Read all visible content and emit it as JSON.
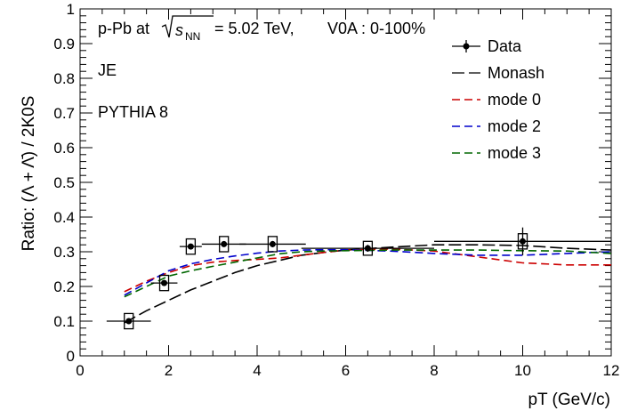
{
  "chart_data": {
    "type": "line",
    "ylabel": "Ratio: (Λ + Λ̄) / 2K0S",
    "xlabel": "pT (GeV/c)",
    "xlim": [
      0,
      12
    ],
    "ylim": [
      0,
      1.0
    ],
    "x_ticks": [
      0,
      2,
      4,
      6,
      8,
      10,
      12
    ],
    "y_ticks": [
      0,
      0.1,
      0.2,
      0.3,
      0.4,
      0.5,
      0.6,
      0.7,
      0.8,
      0.9,
      1.0
    ],
    "annotations": {
      "system_prefix": "p-Pb at",
      "energy_value": "= 5.02 TeV,",
      "centrality": "V0A : 0-100%",
      "label_je": "JE",
      "label_generator": "PYTHIA 8"
    },
    "legend": {
      "placement": "top-right",
      "entries": [
        "Data",
        "Monash",
        "mode 0",
        "mode 2",
        "mode 3"
      ]
    },
    "series": [
      {
        "name": "Data",
        "style": "points",
        "color": "#000000",
        "x": [
          1.1,
          1.9,
          2.5,
          3.25,
          4.35,
          6.5,
          10.0
        ],
        "y": [
          0.1,
          0.21,
          0.315,
          0.322,
          0.322,
          0.31,
          0.33
        ],
        "xerr": [
          0.5,
          0.3,
          0.25,
          0.5,
          0.75,
          1.5,
          2.0
        ],
        "yerr": [
          0.008,
          0.008,
          0.008,
          0.008,
          0.009,
          0.01,
          0.04
        ],
        "syst": [
          0.022,
          0.022,
          0.022,
          0.022,
          0.022,
          0.02,
          0.022
        ]
      },
      {
        "name": "Monash",
        "style": "long-dash",
        "color": "#000000",
        "x": [
          1,
          1.5,
          2,
          2.5,
          3,
          3.5,
          4,
          4.5,
          5,
          5.5,
          6,
          7,
          8,
          9,
          10,
          11,
          12
        ],
        "y": [
          0.095,
          0.13,
          0.16,
          0.19,
          0.215,
          0.24,
          0.26,
          0.275,
          0.29,
          0.298,
          0.305,
          0.313,
          0.32,
          0.32,
          0.318,
          0.31,
          0.305
        ]
      },
      {
        "name": "mode 0",
        "style": "dash",
        "color": "#cc0000",
        "x": [
          1,
          1.5,
          2,
          2.5,
          3,
          3.5,
          4,
          4.5,
          5,
          5.5,
          6,
          7,
          8,
          9,
          10,
          11,
          12
        ],
        "y": [
          0.185,
          0.215,
          0.24,
          0.26,
          0.27,
          0.275,
          0.278,
          0.282,
          0.29,
          0.298,
          0.305,
          0.308,
          0.302,
          0.285,
          0.268,
          0.262,
          0.262
        ]
      },
      {
        "name": "mode 2",
        "style": "dash",
        "color": "#0000cc",
        "x": [
          1,
          1.5,
          2,
          2.5,
          3,
          3.5,
          4,
          4.5,
          5,
          5.5,
          6,
          7,
          8,
          9,
          10,
          11,
          12
        ],
        "y": [
          0.175,
          0.21,
          0.245,
          0.265,
          0.278,
          0.288,
          0.296,
          0.302,
          0.305,
          0.306,
          0.306,
          0.302,
          0.295,
          0.29,
          0.29,
          0.295,
          0.3
        ]
      },
      {
        "name": "mode 3",
        "style": "dash",
        "color": "#006600",
        "x": [
          1,
          1.5,
          2,
          2.5,
          3,
          3.5,
          4,
          4.5,
          5,
          5.5,
          6,
          7,
          8,
          9,
          10,
          11,
          12
        ],
        "y": [
          0.17,
          0.2,
          0.23,
          0.245,
          0.258,
          0.27,
          0.282,
          0.294,
          0.3,
          0.302,
          0.303,
          0.305,
          0.305,
          0.305,
          0.303,
          0.302,
          0.295
        ]
      }
    ]
  }
}
